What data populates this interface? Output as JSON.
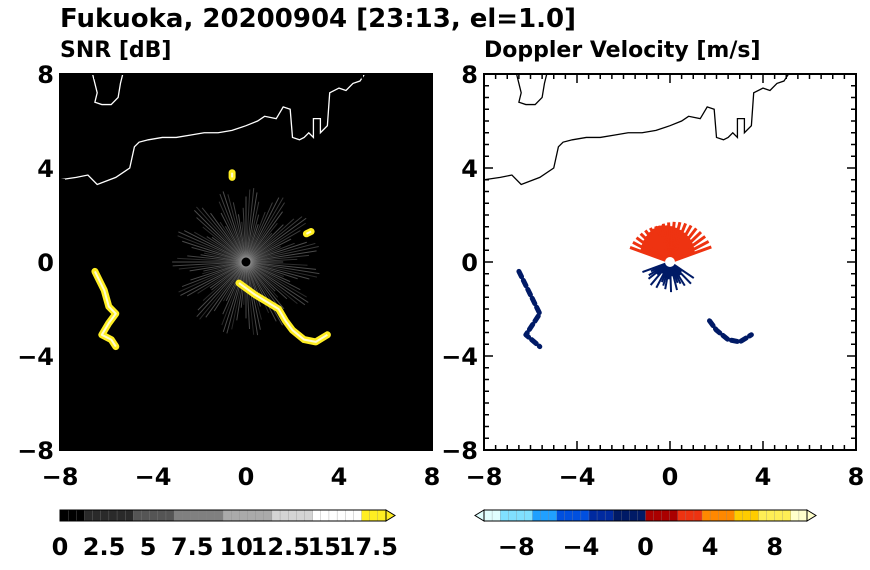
{
  "title": "Fukuoka, 20200904 [23:13, el=1.0]",
  "colors": {
    "snr_background": "#000000",
    "echo_yellow": "#ffee22",
    "coastline_on_dark": "#ffffff",
    "coastline_on_light": "#000000",
    "doppler_receding": "#ee3311",
    "doppler_approaching": "#001a66"
  },
  "chart_data": [
    {
      "type": "heatmap",
      "panel_title": "SNR [dB]",
      "x_ticks": [
        "−8",
        "−4",
        "0",
        "4",
        "8"
      ],
      "y_ticks": [
        "8",
        "4",
        "0",
        "−4",
        "−8"
      ],
      "xlim": [
        -8,
        8
      ],
      "ylim": [
        -8,
        8
      ],
      "colorbar": {
        "tick_labels": [
          "0",
          "2.5",
          "5",
          "7.5",
          "10",
          "12.5",
          "15",
          "17.5"
        ],
        "range": [
          0,
          18.5
        ],
        "extend": "max",
        "colors_low_to_high": [
          "#000000",
          "#2a2a2a",
          "#555555",
          "#808080",
          "#aaaaaa",
          "#d4d4d4",
          "#ffffff",
          "#ffee22"
        ]
      },
      "echo_features": [
        {
          "name": "west band",
          "points": [
            [
              -6.5,
              -0.4
            ],
            [
              -6.1,
              -1.2
            ],
            [
              -5.9,
              -1.9
            ],
            [
              -5.6,
              -2.2
            ],
            [
              -5.9,
              -2.6
            ],
            [
              -6.2,
              -3.1
            ],
            [
              -5.8,
              -3.3
            ],
            [
              -5.6,
              -3.6
            ]
          ]
        },
        {
          "name": "southeast band",
          "points": [
            [
              -0.3,
              -0.9
            ],
            [
              0.4,
              -1.4
            ],
            [
              0.9,
              -1.7
            ],
            [
              1.4,
              -2.0
            ],
            [
              1.7,
              -2.5
            ],
            [
              2.0,
              -2.9
            ],
            [
              2.5,
              -3.3
            ],
            [
              3.0,
              -3.4
            ],
            [
              3.5,
              -3.1
            ]
          ]
        },
        {
          "name": "small cell north",
          "points": [
            [
              -0.6,
              3.6
            ],
            [
              -0.6,
              3.8
            ]
          ]
        },
        {
          "name": "small cell east",
          "points": [
            [
              2.6,
              1.2
            ],
            [
              2.8,
              1.3
            ]
          ]
        }
      ]
    },
    {
      "type": "heatmap",
      "panel_title": "Doppler Velocity [m/s]",
      "x_ticks": [
        "−8",
        "−4",
        "0",
        "4",
        "8"
      ],
      "y_ticks": [
        "8",
        "4",
        "0",
        "−4",
        "−8"
      ],
      "xlim": [
        -8,
        8
      ],
      "ylim": [
        -8,
        8
      ],
      "colorbar": {
        "tick_labels": [
          "−8",
          "−4",
          "0",
          "4",
          "8"
        ],
        "range": [
          -10,
          10
        ],
        "extend": "both",
        "colors_low_to_high": [
          "#e0ffff",
          "#80e0ff",
          "#20a0ff",
          "#0050e0",
          "#002aa0",
          "#001a66",
          "#aa0000",
          "#ee3311",
          "#ff8800",
          "#ffcc00",
          "#ffee55",
          "#ffffcc"
        ]
      },
      "echo_features": [
        {
          "name": "receding fan north of radar",
          "velocity": 3,
          "points": [
            [
              -1.5,
              1.3
            ],
            [
              0,
              2.1
            ],
            [
              1.0,
              1.3
            ],
            [
              0.3,
              0.3
            ]
          ]
        },
        {
          "name": "approaching near radar south",
          "velocity": -4,
          "points": [
            [
              -1.3,
              -0.3
            ],
            [
              0,
              -0.8
            ],
            [
              1.5,
              -0.6
            ],
            [
              0.7,
              -1.7
            ]
          ]
        },
        {
          "name": "west band",
          "velocity": -7,
          "points": [
            [
              -6.5,
              -0.4
            ],
            [
              -6.1,
              -1.2
            ],
            [
              -5.6,
              -2.2
            ],
            [
              -6.2,
              -3.1
            ],
            [
              -5.6,
              -3.6
            ]
          ]
        },
        {
          "name": "southeast band",
          "velocity": -7,
          "points": [
            [
              1.7,
              -2.5
            ],
            [
              2.0,
              -2.9
            ],
            [
              2.5,
              -3.3
            ],
            [
              3.0,
              -3.4
            ],
            [
              3.5,
              -3.1
            ]
          ]
        }
      ]
    }
  ]
}
